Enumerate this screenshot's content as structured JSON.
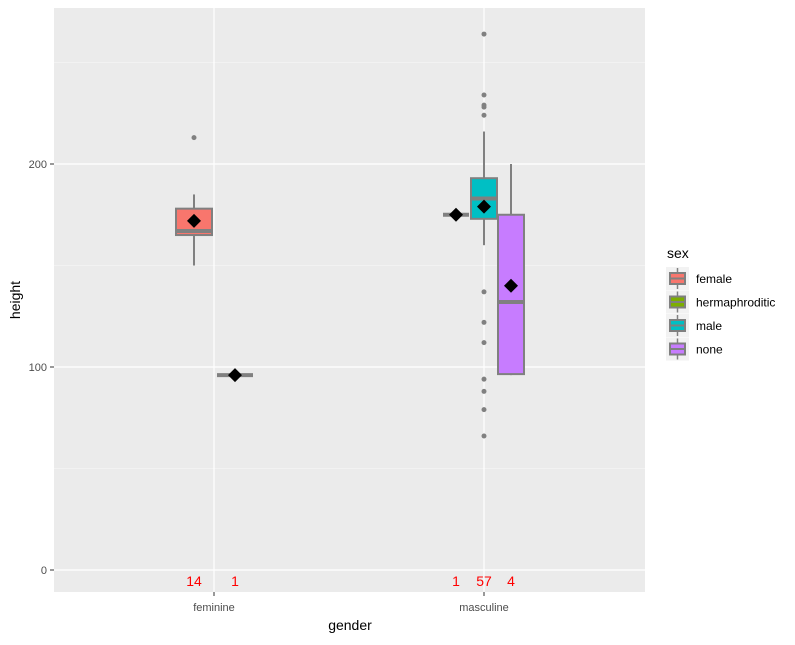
{
  "chart_data": {
    "type": "boxplot",
    "xlabel": "gender",
    "ylabel": "height",
    "categories": [
      "feminine",
      "masculine"
    ],
    "ylim": [
      -11,
      277
    ],
    "yticks": [
      0,
      100,
      200
    ],
    "grid": true,
    "legend": {
      "title": "sex",
      "position": "right",
      "entries": [
        {
          "label": "female",
          "color": "#F8766D"
        },
        {
          "label": "hermaphroditic",
          "color": "#7CAE00"
        },
        {
          "label": "male",
          "color": "#00BFC4"
        },
        {
          "label": "none",
          "color": "#C77CFF"
        }
      ]
    },
    "boxes": [
      {
        "category": "feminine",
        "sex": "female",
        "slot": "left",
        "min": 150,
        "q1": 165,
        "median": 167,
        "q3": 178,
        "max": 185,
        "mean": 172,
        "outliers": [
          213
        ],
        "n": "14"
      },
      {
        "category": "feminine",
        "sex": "none",
        "slot": "right",
        "min": 96,
        "q1": 96,
        "median": 96,
        "q3": 96,
        "max": 96,
        "mean": 96,
        "outliers": [],
        "n": "1"
      },
      {
        "category": "masculine",
        "sex": "female",
        "slot": "left",
        "min": 175,
        "q1": 175,
        "median": 175,
        "q3": 175,
        "max": 175,
        "mean": 175,
        "outliers": [],
        "n": "1"
      },
      {
        "category": "masculine",
        "sex": "male",
        "slot": "center",
        "min": 160,
        "q1": 173,
        "median": 183,
        "q3": 193,
        "max": 216,
        "mean": 179,
        "outliers": [
          264,
          234,
          229,
          228,
          224,
          137,
          122,
          112,
          94,
          88,
          79,
          66
        ],
        "n": "57"
      },
      {
        "category": "masculine",
        "sex": "none",
        "slot": "right",
        "min": 96,
        "q1": 96.5,
        "median": 132,
        "q3": 175,
        "max": 200,
        "mean": 140,
        "outliers": [],
        "n": "4"
      }
    ],
    "count_label_color": "#FF0000"
  }
}
